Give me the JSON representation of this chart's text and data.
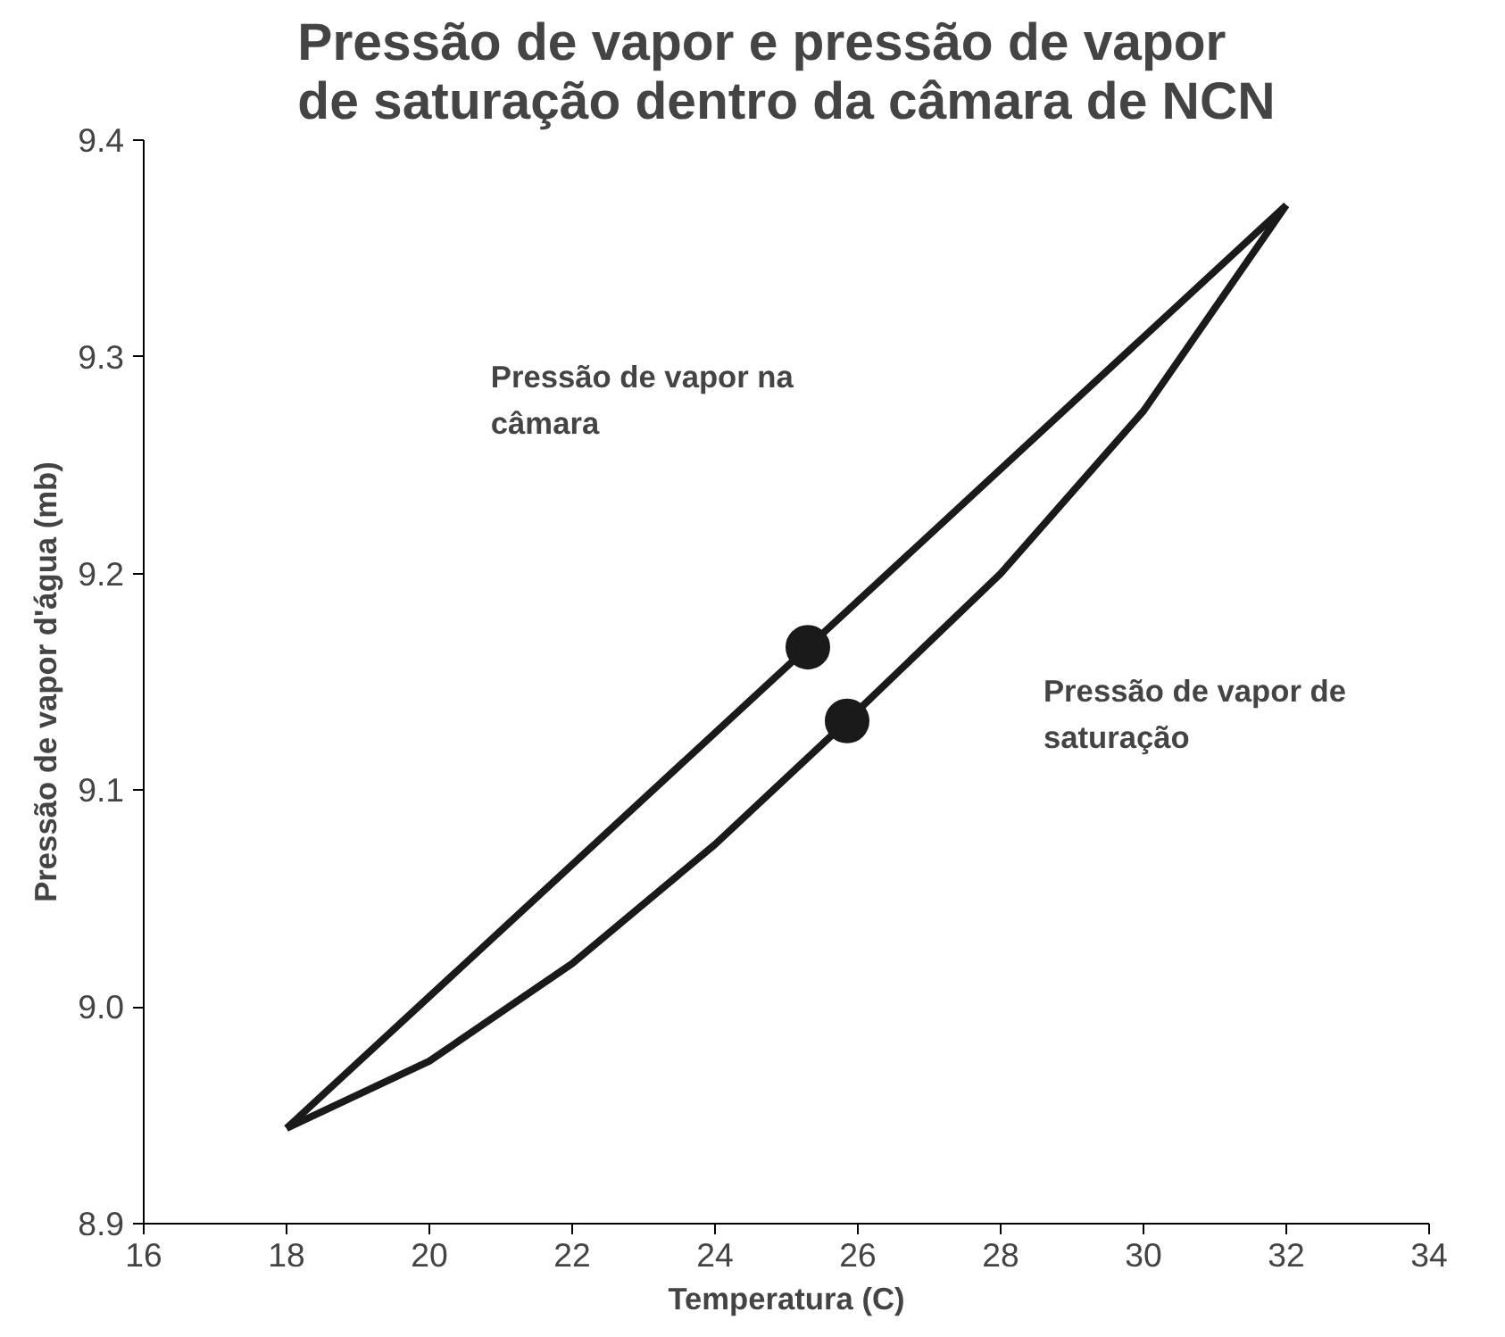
{
  "chart_data": {
    "type": "line",
    "title": "Pressão de vapor e pressão de vapor de saturação dentro da câmara de NCN",
    "xlabel": "Temperatura (C)",
    "ylabel": "Pressão de vapor d'água (mb)",
    "xlim": [
      16,
      34
    ],
    "xticks": [
      16,
      18,
      20,
      22,
      24,
      26,
      28,
      30,
      32,
      34
    ],
    "ylim": [
      8.9,
      9.4
    ],
    "yticks": [
      {
        "value": 8.9,
        "label": "8.9"
      },
      {
        "value": 9.0,
        "label": "9.0"
      },
      {
        "value": 9.1,
        "label": "9.1"
      },
      {
        "value": 9.2,
        "label": "9.2"
      },
      {
        "value": 9.3,
        "label": "9.3"
      },
      {
        "value": 9.4,
        "label": "9.4"
      }
    ],
    "grid": false,
    "marker": "none",
    "line_style": "solid",
    "series": [
      {
        "color": "#1a1a1a",
        "x": [
          18,
          25.3,
          32
        ],
        "values": [
          8.944,
          9.166,
          9.37
        ]
      },
      {
        "color": "#1a1a1a",
        "x": [
          18,
          20,
          22,
          24,
          25.85,
          28,
          30,
          32
        ],
        "values": [
          8.944,
          8.975,
          9.02,
          9.075,
          9.132,
          9.2,
          9.275,
          9.37
        ]
      },
      {
        "type": "scatter",
        "marker": "circle",
        "color": "#1a1a1a",
        "x": [
          25.3,
          25.85
        ],
        "values": [
          9.166,
          9.132
        ]
      }
    ],
    "annotations": [
      "Pressão de vapor na\ncâmara",
      "Pressão de vapor de\nsaturação"
    ]
  }
}
